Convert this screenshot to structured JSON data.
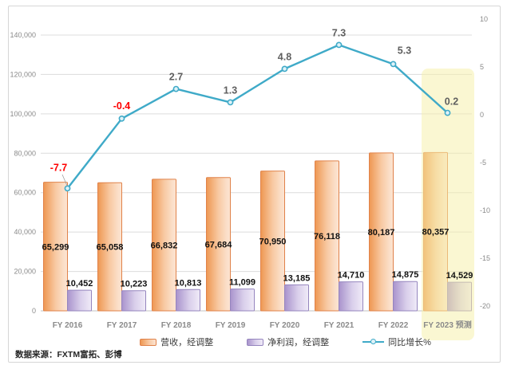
{
  "chart_data": {
    "type": "combo",
    "categories": [
      "FY 2016",
      "FY 2017",
      "FY 2018",
      "FY 2019",
      "FY 2020",
      "FY 2021",
      "FY 2022",
      "FY 2023 预测"
    ],
    "series": [
      {
        "name": "营收，经调整",
        "type": "bar",
        "axis": "left",
        "values": [
          65299,
          65058,
          66832,
          67684,
          70950,
          76118,
          80187,
          80357
        ]
      },
      {
        "name": "净利润，经调整",
        "type": "bar",
        "axis": "left",
        "values": [
          10452,
          10223,
          10813,
          11099,
          13185,
          14710,
          14875,
          14529
        ]
      },
      {
        "name": "同比增长%",
        "type": "line",
        "axis": "right",
        "values": [
          -7.7,
          -0.4,
          2.7,
          1.3,
          4.8,
          7.3,
          5.3,
          0.2
        ],
        "label_colors": [
          "#ff0000",
          "#ff0000",
          "#5f5f5f",
          "#5f5f5f",
          "#5f5f5f",
          "#5f5f5f",
          "#5f5f5f",
          "#5f5f5f"
        ]
      }
    ],
    "left_axis": {
      "min": 0,
      "max": 140000,
      "step": 20000
    },
    "right_axis": {
      "min": -20,
      "max": 10,
      "step": 5
    },
    "grid": true,
    "legend_position": "bottom",
    "highlight": {
      "category": "FY 2023 预测",
      "category_index": 7,
      "color": "#f6efa5"
    },
    "source": "数据来源：FXTM富拓、彭博"
  },
  "colors": {
    "revenue_border": "#e0824a",
    "profit_border": "#9585be",
    "line": "#3faac8",
    "marker_fill": "#dff2f8",
    "gridline": "#dcdcdc",
    "axis_line": "#c3c3c3",
    "highlight_band": "#f6efa5"
  }
}
